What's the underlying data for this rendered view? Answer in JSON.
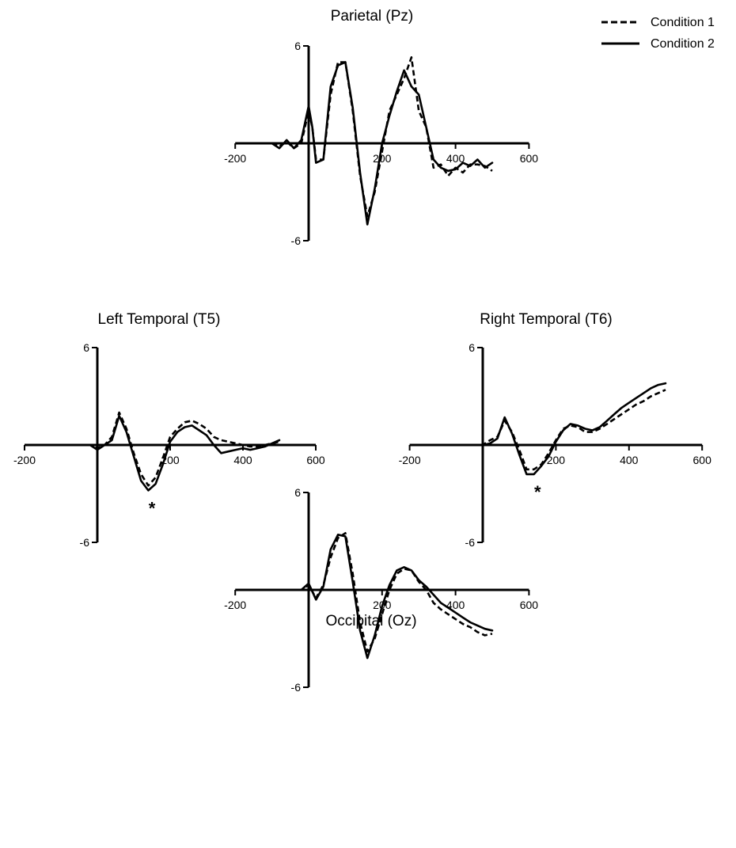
{
  "legend": {
    "items": [
      {
        "label": "Condition 1",
        "style": "dashed",
        "color": "#000000"
      },
      {
        "label": "Condition 2",
        "style": "solid",
        "color": "#000000"
      }
    ]
  },
  "chart_data": [
    {
      "id": "pz",
      "type": "line",
      "title": "Parietal (Pz)",
      "xlabel": "",
      "ylabel": "",
      "xlim": [
        -200,
        600
      ],
      "ylim": [
        -6,
        6
      ],
      "x_ticks": [
        -200,
        200,
        400,
        600
      ],
      "y_ticks": [
        6,
        -6
      ],
      "annotations": [],
      "series": [
        {
          "name": "Condition 1",
          "style": "dashed",
          "x": [
            -100,
            -80,
            -60,
            -40,
            -20,
            0,
            10,
            20,
            40,
            60,
            80,
            100,
            120,
            140,
            160,
            180,
            200,
            220,
            240,
            260,
            280,
            300,
            320,
            340,
            360,
            380,
            400,
            420,
            440,
            460,
            480,
            500
          ],
          "y": [
            0,
            -0.2,
            0.1,
            -0.3,
            0,
            2,
            1,
            -1,
            -1,
            3,
            5,
            5,
            2,
            -2,
            -4.5,
            -3,
            -0.5,
            2,
            3,
            4,
            5.3,
            2,
            1,
            -1.5,
            -1.3,
            -2,
            -1.5,
            -1.8,
            -1.3,
            -1.3,
            -1.4,
            -1.7
          ]
        },
        {
          "name": "Condition 2",
          "style": "solid",
          "x": [
            -100,
            -80,
            -60,
            -40,
            -20,
            0,
            10,
            20,
            40,
            60,
            80,
            100,
            120,
            140,
            160,
            180,
            200,
            220,
            240,
            260,
            280,
            300,
            320,
            340,
            360,
            380,
            400,
            420,
            440,
            460,
            480,
            500
          ],
          "y": [
            0,
            -0.3,
            0.2,
            -0.3,
            0.2,
            2.3,
            1,
            -1.2,
            -1,
            3.5,
            4.8,
            5,
            2.2,
            -1.8,
            -5,
            -2.8,
            0,
            1.7,
            3.2,
            4.5,
            3.5,
            3,
            1,
            -1,
            -1.5,
            -1.7,
            -1.6,
            -1.2,
            -1.4,
            -1,
            -1.5,
            -1.2
          ]
        }
      ]
    },
    {
      "id": "t5",
      "type": "line",
      "title": "Left Temporal (T5)",
      "xlabel": "",
      "ylabel": "",
      "xlim": [
        -200,
        600
      ],
      "ylim": [
        -6,
        6
      ],
      "x_ticks": [
        -200,
        200,
        400,
        600
      ],
      "y_ticks": [
        6,
        -6
      ],
      "annotations": [
        {
          "text": "*",
          "x": 150
        }
      ],
      "series": [
        {
          "name": "Condition 1",
          "style": "dashed",
          "x": [
            -100,
            -60,
            -20,
            0,
            20,
            40,
            60,
            80,
            100,
            120,
            140,
            160,
            180,
            200,
            220,
            240,
            260,
            280,
            300,
            320,
            340,
            360,
            380,
            400,
            420,
            440,
            460,
            480,
            500
          ],
          "y": [
            0,
            0,
            0,
            -0.2,
            0,
            0.5,
            2,
            1,
            -0.5,
            -1.8,
            -2.5,
            -2,
            -0.8,
            0.5,
            1,
            1.4,
            1.5,
            1.3,
            1,
            0.5,
            0.3,
            0.2,
            0.1,
            0,
            -0.1,
            -0.1,
            0,
            0.1,
            0.2
          ]
        },
        {
          "name": "Condition 2",
          "style": "solid",
          "x": [
            -100,
            -60,
            -20,
            0,
            20,
            40,
            60,
            80,
            100,
            120,
            140,
            160,
            180,
            200,
            220,
            240,
            260,
            280,
            300,
            320,
            340,
            360,
            380,
            400,
            420,
            440,
            460,
            480,
            500
          ],
          "y": [
            0,
            0,
            0,
            -0.3,
            0,
            0.3,
            1.8,
            0.8,
            -0.7,
            -2.2,
            -2.8,
            -2.4,
            -1.2,
            0.2,
            0.8,
            1.1,
            1.2,
            0.9,
            0.6,
            0,
            -0.5,
            -0.4,
            -0.3,
            -0.2,
            -0.3,
            -0.2,
            -0.1,
            0.1,
            0.3
          ]
        }
      ]
    },
    {
      "id": "t6",
      "type": "line",
      "title": "Right Temporal (T6)",
      "xlabel": "",
      "ylabel": "",
      "xlim": [
        -200,
        600
      ],
      "ylim": [
        -6,
        6
      ],
      "x_ticks": [
        -200,
        200,
        400,
        600
      ],
      "y_ticks": [
        6,
        -6
      ],
      "annotations": [
        {
          "text": "*",
          "x": 150
        }
      ],
      "series": [
        {
          "name": "Condition 1",
          "style": "dashed",
          "x": [
            -100,
            -60,
            -20,
            0,
            20,
            40,
            60,
            80,
            100,
            120,
            140,
            160,
            180,
            200,
            220,
            240,
            260,
            280,
            300,
            320,
            340,
            360,
            380,
            400,
            420,
            440,
            460,
            480,
            500
          ],
          "y": [
            0,
            0,
            0,
            0,
            0.3,
            0.5,
            1.5,
            0.8,
            -0.3,
            -1.5,
            -1.5,
            -1.2,
            -0.5,
            0.3,
            1,
            1.2,
            1.1,
            0.8,
            0.8,
            1,
            1.3,
            1.6,
            1.9,
            2.2,
            2.5,
            2.7,
            3,
            3.2,
            3.4
          ]
        },
        {
          "name": "Condition 2",
          "style": "solid",
          "x": [
            -100,
            -60,
            -20,
            0,
            20,
            40,
            60,
            80,
            100,
            120,
            140,
            160,
            180,
            200,
            220,
            240,
            260,
            280,
            300,
            320,
            340,
            360,
            380,
            400,
            420,
            440,
            460,
            480,
            500
          ],
          "y": [
            0,
            0,
            0,
            0,
            0.1,
            0.4,
            1.7,
            0.7,
            -0.6,
            -1.8,
            -1.8,
            -1.3,
            -0.7,
            0.2,
            0.9,
            1.3,
            1.2,
            1,
            0.9,
            1.1,
            1.5,
            1.9,
            2.3,
            2.6,
            2.9,
            3.2,
            3.5,
            3.7,
            3.8
          ]
        }
      ]
    },
    {
      "id": "oz",
      "type": "line",
      "title": "Occipital (Oz)",
      "xlabel": "",
      "ylabel": "",
      "xlim": [
        -200,
        600
      ],
      "ylim": [
        -6,
        6
      ],
      "x_ticks": [
        -200,
        200,
        400,
        600
      ],
      "y_ticks": [
        6,
        -6
      ],
      "annotations": [],
      "series": [
        {
          "name": "Condition 1",
          "style": "dashed",
          "x": [
            -100,
            -60,
            -20,
            0,
            20,
            40,
            60,
            80,
            100,
            120,
            140,
            160,
            180,
            200,
            220,
            240,
            260,
            280,
            300,
            320,
            340,
            360,
            380,
            400,
            420,
            440,
            460,
            480,
            500
          ],
          "y": [
            0,
            0,
            0,
            0.3,
            -0.5,
            0.3,
            2,
            3.2,
            3.5,
            1,
            -2,
            -3.8,
            -3,
            -1.5,
            0,
            1,
            1.3,
            1.2,
            0.5,
            0,
            -0.8,
            -1.2,
            -1.5,
            -1.8,
            -2.1,
            -2.3,
            -2.6,
            -2.8,
            -2.7
          ]
        },
        {
          "name": "Condition 2",
          "style": "solid",
          "x": [
            -100,
            -60,
            -20,
            0,
            20,
            40,
            60,
            80,
            100,
            120,
            140,
            160,
            180,
            200,
            220,
            240,
            260,
            280,
            300,
            320,
            340,
            360,
            380,
            400,
            420,
            440,
            460,
            480,
            500
          ],
          "y": [
            0,
            0,
            0,
            0.4,
            -0.6,
            0.2,
            2.5,
            3.4,
            3.3,
            0.5,
            -2.5,
            -4.2,
            -2.8,
            -1,
            0.3,
            1.2,
            1.4,
            1.2,
            0.6,
            0.2,
            -0.3,
            -0.8,
            -1.1,
            -1.4,
            -1.7,
            -2,
            -2.2,
            -2.4,
            -2.5
          ]
        }
      ]
    }
  ]
}
